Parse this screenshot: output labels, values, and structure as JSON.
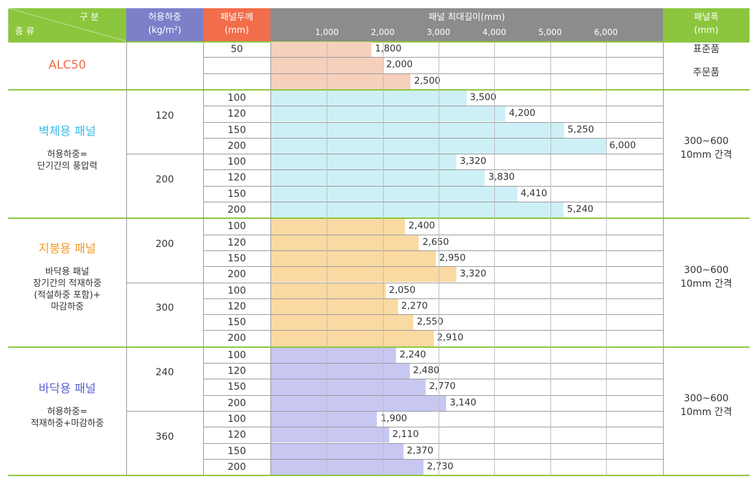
{
  "header": {
    "category_label_top": "구 분",
    "category_label_bottom": "종 류",
    "load_label": "허용하중",
    "load_unit": "(kg/m²)",
    "thickness_label": "패널두께",
    "thickness_unit": "(mm)",
    "length_label": "패널 최대길이(mm)",
    "length_ticks": [
      "1,000",
      "2,000",
      "3,000",
      "4,000",
      "5,000",
      "6,000"
    ],
    "width_label": "패널폭",
    "width_unit": "(mm)"
  },
  "colors": {
    "header_green": "#8cc63e",
    "header_gray": "#8c8c8c",
    "header_purple": "#7d7fc9",
    "header_orange": "#f26d4a",
    "rule_green": "#8cc63e",
    "alc_bar": "#f6d0bc",
    "wall_bar": "#cdf0f6",
    "roof_bar": "#fbd9a2",
    "floor_bar": "#c7c7f2",
    "alc_text": "#ef6c4a",
    "wall_text": "#3cbde8",
    "roof_text": "#f59b24",
    "floor_text": "#5a5fcf"
  },
  "chart_data": {
    "type": "bar",
    "xlim": [
      0,
      7000
    ],
    "ticks": [
      1000,
      2000,
      3000,
      4000,
      5000,
      6000
    ],
    "categories": [
      {
        "name": "ALC50",
        "note": [],
        "color_key": "alc",
        "groups": [
          {
            "load": "",
            "rows": [
              {
                "thickness": "50",
                "value": 1800,
                "label": "1,800"
              },
              {
                "thickness": "",
                "value": 2000,
                "label": "2,000"
              },
              {
                "thickness": "",
                "value": 2500,
                "label": "2,500"
              }
            ]
          }
        ],
        "width_text": [
          "표준품",
          "주문품"
        ]
      },
      {
        "name": "벽체용 패널",
        "note": [
          "허용하중=",
          "단기간의 풍압력"
        ],
        "color_key": "wall",
        "groups": [
          {
            "load": "120",
            "rows": [
              {
                "thickness": "100",
                "value": 3500,
                "label": "3,500"
              },
              {
                "thickness": "120",
                "value": 4200,
                "label": "4,200"
              },
              {
                "thickness": "150",
                "value": 5250,
                "label": "5,250"
              },
              {
                "thickness": "200",
                "value": 6000,
                "label": "6,000"
              }
            ]
          },
          {
            "load": "200",
            "rows": [
              {
                "thickness": "100",
                "value": 3320,
                "label": "3,320"
              },
              {
                "thickness": "120",
                "value": 3830,
                "label": "3,830"
              },
              {
                "thickness": "150",
                "value": 4410,
                "label": "4,410"
              },
              {
                "thickness": "200",
                "value": 5240,
                "label": "5,240"
              }
            ]
          }
        ],
        "width_text": [
          "300~600",
          "10mm 간격"
        ]
      },
      {
        "name": "지붕용 패널",
        "note": [
          "바닥용 패널",
          "장기간의 적재하중",
          "(적설하중 포함)+",
          "마감하중"
        ],
        "color_key": "roof",
        "groups": [
          {
            "load": "200",
            "rows": [
              {
                "thickness": "100",
                "value": 2400,
                "label": "2,400"
              },
              {
                "thickness": "120",
                "value": 2650,
                "label": "2,650"
              },
              {
                "thickness": "150",
                "value": 2950,
                "label": "2,950"
              },
              {
                "thickness": "200",
                "value": 3320,
                "label": "3,320"
              }
            ]
          },
          {
            "load": "300",
            "rows": [
              {
                "thickness": "100",
                "value": 2050,
                "label": "2,050"
              },
              {
                "thickness": "120",
                "value": 2270,
                "label": "2,270"
              },
              {
                "thickness": "150",
                "value": 2550,
                "label": "2,550"
              },
              {
                "thickness": "200",
                "value": 2910,
                "label": "2,910"
              }
            ]
          }
        ],
        "width_text": [
          "300~600",
          "10mm 간격"
        ]
      },
      {
        "name": "바닥용 패널",
        "note": [
          "허용하중=",
          "적재하중+마감하중"
        ],
        "color_key": "floor",
        "groups": [
          {
            "load": "240",
            "rows": [
              {
                "thickness": "100",
                "value": 2240,
                "label": "2,240"
              },
              {
                "thickness": "120",
                "value": 2480,
                "label": "2,480"
              },
              {
                "thickness": "150",
                "value": 2770,
                "label": "2,770"
              },
              {
                "thickness": "200",
                "value": 3140,
                "label": "3,140"
              }
            ]
          },
          {
            "load": "360",
            "rows": [
              {
                "thickness": "100",
                "value": 1900,
                "label": "1,900"
              },
              {
                "thickness": "120",
                "value": 2110,
                "label": "2,110"
              },
              {
                "thickness": "150",
                "value": 2370,
                "label": "2,370"
              },
              {
                "thickness": "200",
                "value": 2730,
                "label": "2,730"
              }
            ]
          }
        ],
        "width_text": [
          "300~600",
          "10mm 간격"
        ]
      }
    ]
  }
}
